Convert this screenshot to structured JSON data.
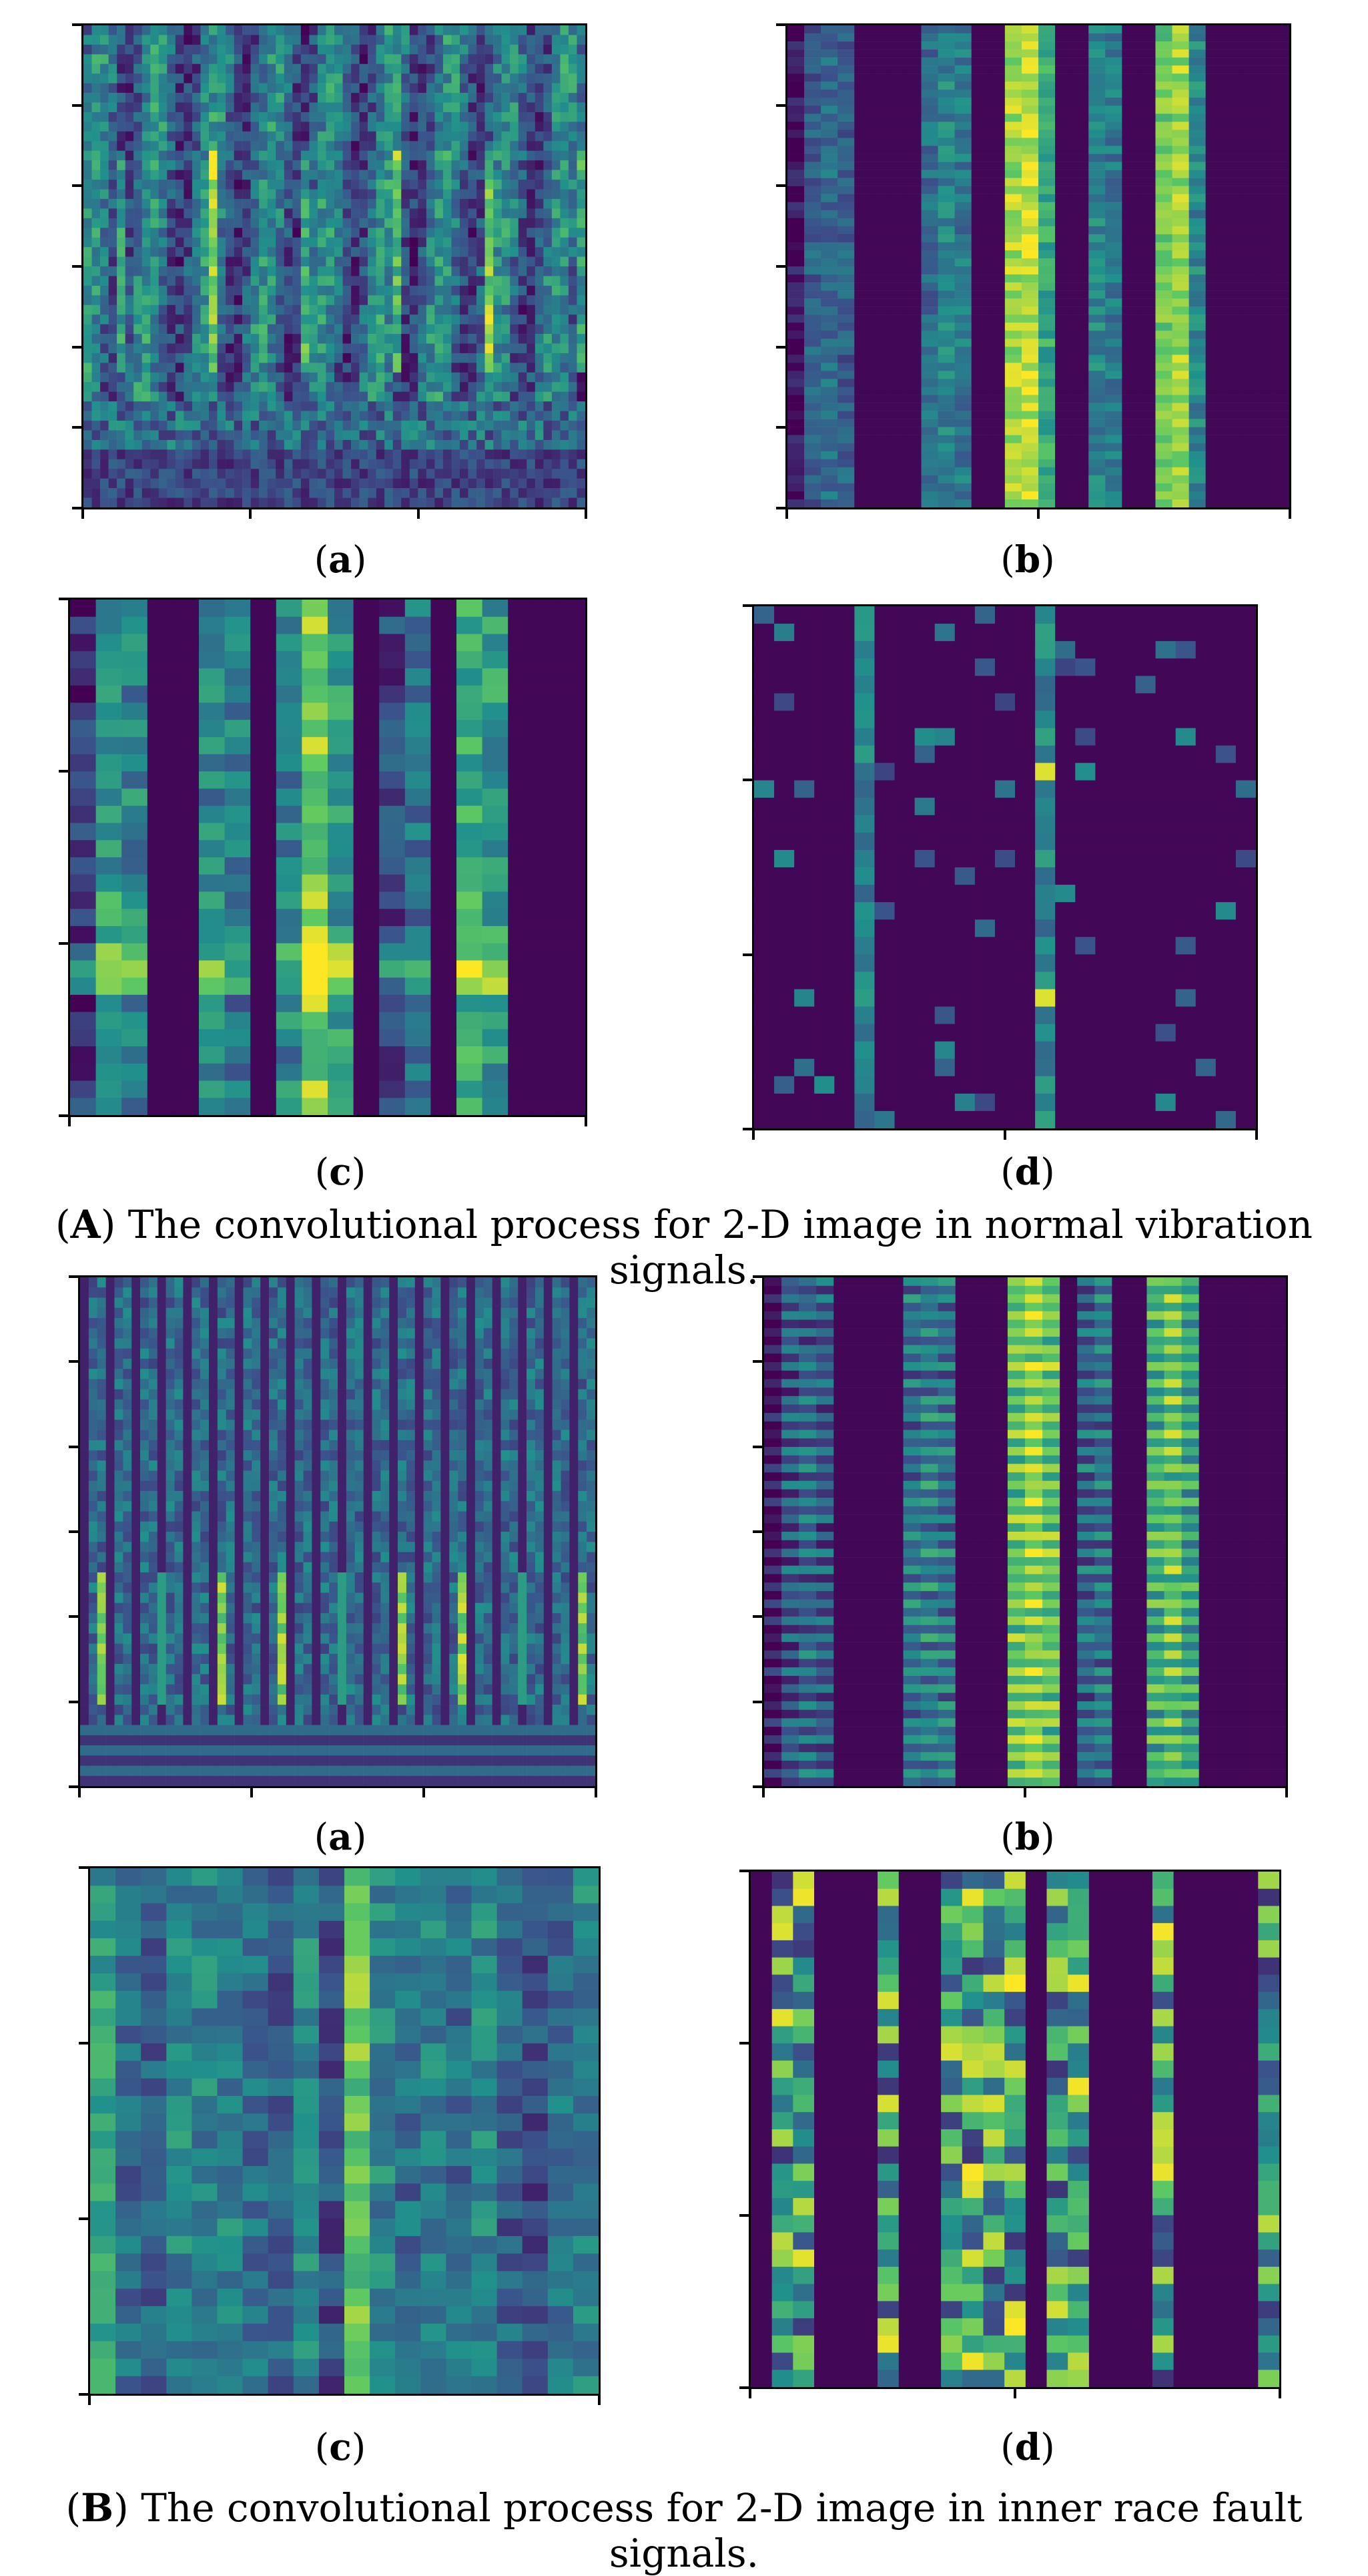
{
  "figure": {
    "sectionA": {
      "caption_letter": "A",
      "caption_text": " The convolutional process for 2-D image in normal vibration signals.",
      "panels": [
        {
          "id": "a",
          "label_open": "(",
          "label_letter": "a",
          "label_close": ")",
          "kind": "scalogram",
          "palette": "viridis"
        },
        {
          "id": "b",
          "label_open": "(",
          "label_letter": "b",
          "label_close": ")",
          "kind": "feature-map",
          "palette": "viridis"
        },
        {
          "id": "c",
          "label_open": "(",
          "label_letter": "c",
          "label_close": ")",
          "kind": "feature-map",
          "palette": "viridis"
        },
        {
          "id": "d",
          "label_open": "(",
          "label_letter": "d",
          "label_close": ")",
          "kind": "feature-map",
          "palette": "viridis"
        }
      ]
    },
    "sectionB": {
      "caption_letter": "B",
      "caption_text": " The convolutional process for 2-D image in inner race fault signals.",
      "panels": [
        {
          "id": "a",
          "label_open": "(",
          "label_letter": "a",
          "label_close": ")",
          "kind": "scalogram",
          "palette": "viridis"
        },
        {
          "id": "b",
          "label_open": "(",
          "label_letter": "b",
          "label_close": ")",
          "kind": "feature-map",
          "palette": "viridis"
        },
        {
          "id": "c",
          "label_open": "(",
          "label_letter": "c",
          "label_close": ")",
          "kind": "feature-map",
          "palette": "viridis"
        },
        {
          "id": "d",
          "label_open": "(",
          "label_letter": "d",
          "label_close": ")",
          "kind": "feature-map",
          "palette": "viridis"
        }
      ]
    },
    "colors": {
      "dark": "#440154",
      "blue": "#3b528b",
      "teal": "#21918c",
      "green": "#5ec962",
      "yellow": "#fde725",
      "frame": "#000000"
    }
  }
}
